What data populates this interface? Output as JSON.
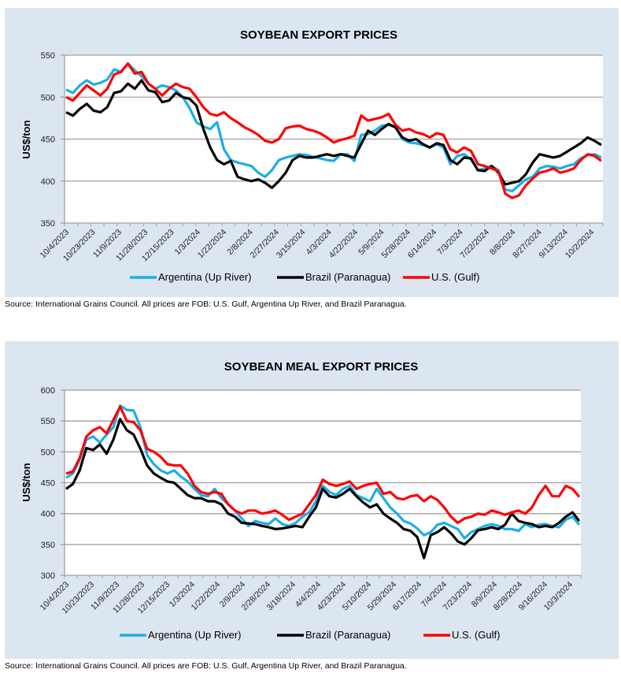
{
  "colors": {
    "panel_bg": "#dce6f1",
    "argentina": "#1aafe6",
    "brazil": "#000000",
    "us": "#ff0000",
    "grid": "#a0a0a0"
  },
  "chart_data": [
    {
      "type": "line",
      "title": "SOYBEAN EXPORT PRICES",
      "xlabel": "",
      "ylabel": "US$/ton",
      "ylim": [
        350,
        550
      ],
      "yticks": [
        350,
        400,
        450,
        500,
        550
      ],
      "grid": true,
      "legend_position": "bottom",
      "x_tick_labels": [
        "10/4/2023",
        "10/23/2023",
        "11/9/2023",
        "11/28/2023",
        "12/15/2023",
        "1/3/2024",
        "1/22/2024",
        "2/8/2024",
        "2/27/2024",
        "3/15/2024",
        "4/3/2024",
        "4/22/2024",
        "5/9/2024",
        "5/28/2024",
        "6/14/2024",
        "7/3/2024",
        "7/22/2024",
        "8/8/2024",
        "8/27/2024",
        "9/13/2024",
        "10/2/2024"
      ],
      "x_points_per_tick": 2,
      "series": [
        {
          "name": "Argentina (Up River)",
          "color_key": "argentina",
          "values": [
            509,
            505,
            514,
            520,
            515,
            517,
            521,
            533,
            530,
            540,
            532,
            525,
            516,
            510,
            514,
            512,
            508,
            500,
            487,
            470,
            465,
            462,
            470,
            438,
            425,
            422,
            420,
            418,
            410,
            405,
            413,
            425,
            428,
            430,
            432,
            431,
            429,
            427,
            425,
            424,
            432,
            432,
            424,
            455,
            456,
            460,
            466,
            467,
            464,
            450,
            446,
            445,
            443,
            440,
            444,
            440,
            420,
            430,
            432,
            426,
            413,
            415,
            418,
            413,
            390,
            388,
            395,
            402,
            405,
            415,
            418,
            417,
            415,
            418,
            420,
            427,
            431,
            432,
            428
          ]
        },
        {
          "name": "Brazil (Paranagua)",
          "color_key": "brazil",
          "values": [
            482,
            478,
            486,
            492,
            484,
            482,
            488,
            505,
            507,
            516,
            510,
            520,
            508,
            506,
            494,
            496,
            505,
            500,
            498,
            490,
            462,
            440,
            425,
            420,
            424,
            405,
            402,
            400,
            402,
            398,
            392,
            400,
            410,
            425,
            430,
            428,
            428,
            430,
            432,
            430,
            432,
            430,
            428,
            444,
            460,
            455,
            462,
            468,
            464,
            452,
            448,
            450,
            444,
            440,
            445,
            443,
            425,
            420,
            428,
            427,
            413,
            412,
            418,
            410,
            396,
            398,
            400,
            408,
            422,
            432,
            430,
            428,
            430,
            435,
            440,
            445,
            452,
            448,
            443
          ]
        },
        {
          "name": "U.S. (Gulf)",
          "color_key": "us",
          "values": [
            500,
            496,
            505,
            514,
            508,
            502,
            510,
            527,
            530,
            540,
            528,
            530,
            516,
            510,
            502,
            510,
            516,
            512,
            510,
            500,
            488,
            480,
            478,
            482,
            475,
            470,
            464,
            460,
            455,
            448,
            446,
            450,
            463,
            465,
            466,
            462,
            460,
            457,
            452,
            446,
            449,
            451,
            454,
            478,
            472,
            474,
            476,
            480,
            467,
            460,
            462,
            458,
            456,
            452,
            457,
            455,
            438,
            434,
            440,
            436,
            420,
            418,
            415,
            412,
            385,
            380,
            383,
            395,
            403,
            410,
            412,
            415,
            410,
            412,
            415,
            425,
            432,
            430,
            424
          ]
        }
      ]
    },
    {
      "type": "line",
      "title": "SOYBEAN MEAL EXPORT PRICES",
      "xlabel": "",
      "ylabel": "US$/ton",
      "ylim": [
        300,
        600
      ],
      "yticks": [
        300,
        350,
        400,
        450,
        500,
        550,
        600
      ],
      "grid": true,
      "legend_position": "bottom",
      "x_tick_labels": [
        "10/4/2023",
        "10/23/2023",
        "11/9/2023",
        "11/28/2023",
        "12/15/2023",
        "1/3/2024",
        "1/22/2024",
        "2/9/2024",
        "2/28/2024",
        "3/18/2024",
        "4/4/2024",
        "4/23/2024",
        "5/10/2024",
        "5/29/2024",
        "6/17/2024",
        "7/4/2024",
        "7/23/2024",
        "8/9/2024",
        "8/28/2024",
        "9/16/2024",
        "10/3/2024"
      ],
      "x_points_per_tick": 2,
      "series": [
        {
          "name": "Argentina (Up River)",
          "color_key": "argentina",
          "values": [
            458,
            465,
            487,
            520,
            525,
            515,
            528,
            540,
            575,
            568,
            567,
            540,
            495,
            480,
            470,
            465,
            470,
            460,
            452,
            440,
            430,
            428,
            440,
            425,
            415,
            405,
            392,
            380,
            388,
            385,
            383,
            392,
            383,
            380,
            385,
            395,
            402,
            420,
            445,
            435,
            430,
            440,
            445,
            430,
            425,
            420,
            440,
            425,
            410,
            400,
            388,
            384,
            376,
            365,
            370,
            382,
            385,
            380,
            375,
            360,
            370,
            375,
            380,
            383,
            380,
            375,
            375,
            372,
            383,
            378,
            382,
            383,
            380,
            378,
            390,
            395,
            382
          ]
        },
        {
          "name": "Brazil (Paranagua)",
          "color_key": "brazil",
          "values": [
            440,
            448,
            470,
            506,
            503,
            512,
            497,
            520,
            553,
            535,
            528,
            505,
            478,
            465,
            458,
            452,
            450,
            440,
            430,
            425,
            425,
            420,
            420,
            415,
            400,
            395,
            385,
            384,
            383,
            380,
            378,
            375,
            376,
            378,
            380,
            378,
            395,
            410,
            440,
            428,
            426,
            432,
            440,
            428,
            418,
            410,
            415,
            400,
            392,
            385,
            375,
            372,
            362,
            328,
            365,
            370,
            378,
            368,
            355,
            350,
            360,
            373,
            375,
            378,
            375,
            382,
            400,
            388,
            385,
            383,
            378,
            380,
            378,
            385,
            395,
            402,
            388
          ]
        },
        {
          "name": "U.S. (Gulf)",
          "color_key": "us",
          "values": [
            465,
            468,
            490,
            525,
            535,
            540,
            530,
            552,
            573,
            550,
            548,
            535,
            505,
            500,
            492,
            480,
            478,
            478,
            465,
            445,
            435,
            432,
            435,
            432,
            415,
            405,
            400,
            405,
            405,
            400,
            402,
            405,
            398,
            390,
            395,
            400,
            415,
            430,
            455,
            448,
            445,
            448,
            452,
            440,
            445,
            448,
            450,
            432,
            435,
            425,
            423,
            428,
            430,
            420,
            428,
            422,
            410,
            395,
            385,
            392,
            395,
            400,
            398,
            405,
            402,
            398,
            402,
            405,
            400,
            410,
            430,
            445,
            428,
            428,
            445,
            440,
            427
          ]
        }
      ]
    }
  ],
  "sources": {
    "chart1": "Source: International Grains Council. All prices are FOB: U.S. Gulf, Argentina Up River, and Brazil Paranagua.",
    "chart2": "Source: International Grains Council. All prices are FOB: U.S. Gulf, Argentina Up River, and Brazil Paranagua."
  }
}
